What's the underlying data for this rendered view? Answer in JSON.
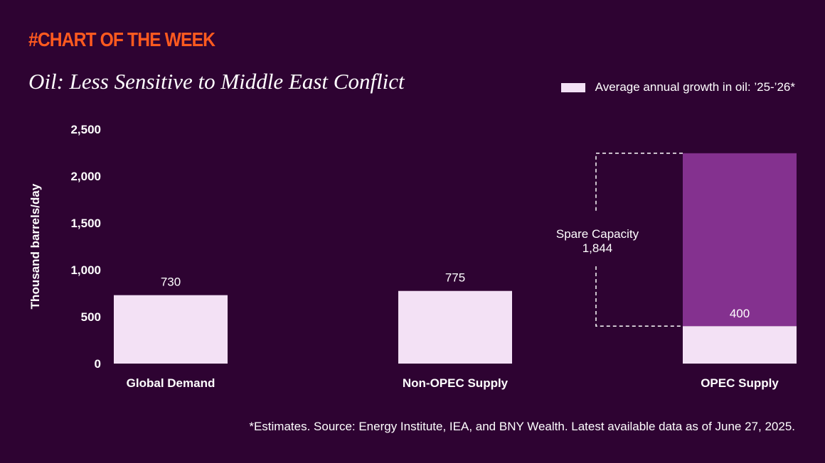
{
  "header": {
    "kicker": "#CHART OF THE WEEK"
  },
  "colors": {
    "background": "#2e0332",
    "kicker": "#ff5a1f",
    "bar_light": "#f3e1f5",
    "bar_spare": "#84318f"
  },
  "footnote": "*Estimates. Source: Energy Institute, IEA, and BNY Wealth. Latest available data as of June 27, 2025.",
  "chart_data": {
    "type": "bar",
    "title": "Oil: Less Sensitive to Middle East Conflict",
    "xlabel": "",
    "ylabel": "Thousand barrels/day",
    "ylim": [
      0,
      2500
    ],
    "yticks": [
      0,
      500,
      1000,
      1500,
      2000,
      2500
    ],
    "ytick_labels": [
      "0",
      "500",
      "1,000",
      "1,500",
      "2,000",
      "2,500"
    ],
    "grid": false,
    "legend": "top-right",
    "categories": [
      "Global Demand",
      "Non-OPEC Supply",
      "OPEC Supply"
    ],
    "series": [
      {
        "name": "Average annual growth in oil: ’25-’26*",
        "values": [
          730,
          775,
          400
        ],
        "value_labels": [
          "730",
          "775",
          "400"
        ]
      },
      {
        "values": [
          0,
          0,
          1844
        ]
      }
    ],
    "annotation": {
      "category": "OPEC Supply",
      "text_line1": "Spare Capacity",
      "text_line2": "1,844",
      "from": 400,
      "to": 2244
    }
  }
}
